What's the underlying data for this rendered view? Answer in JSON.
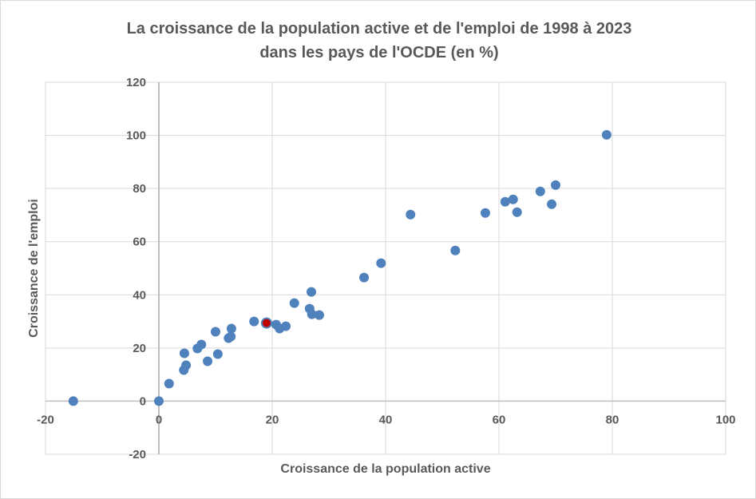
{
  "chart_data": {
    "type": "scatter",
    "title": [
      "La croissance de la population  active et de l'emploi de 1998 à 2023",
      "dans les pays de l'OCDE (en %)"
    ],
    "xlabel": "Croissance de la population  active",
    "ylabel": "Croissance de l'emploi",
    "xlim": [
      -20,
      100
    ],
    "ylim": [
      -20,
      120
    ],
    "xticks": [
      -20,
      0,
      20,
      40,
      60,
      80,
      100
    ],
    "yticks": [
      -20,
      0,
      20,
      40,
      60,
      80,
      100,
      120
    ],
    "grid": true,
    "colors": {
      "point": "#4f81bd",
      "highlight": "#c00000",
      "grid": "#d9d9d9",
      "text": "#595959"
    },
    "points": [
      {
        "x": -15.1,
        "y": 0
      },
      {
        "x": 0,
        "y": 0
      },
      {
        "x": 1.8,
        "y": 6.6
      },
      {
        "x": 4.4,
        "y": 11.7
      },
      {
        "x": 4.8,
        "y": 13.5
      },
      {
        "x": 4.5,
        "y": 18
      },
      {
        "x": 6.8,
        "y": 19.8
      },
      {
        "x": 7.5,
        "y": 21.3
      },
      {
        "x": 8.6,
        "y": 15
      },
      {
        "x": 10,
        "y": 26.1
      },
      {
        "x": 10.4,
        "y": 17.7
      },
      {
        "x": 12.3,
        "y": 23.7
      },
      {
        "x": 12.7,
        "y": 24.3
      },
      {
        "x": 12.8,
        "y": 27.3
      },
      {
        "x": 16.8,
        "y": 30
      },
      {
        "x": 19,
        "y": 29.4,
        "highlight": true
      },
      {
        "x": 20.7,
        "y": 28.8
      },
      {
        "x": 21.3,
        "y": 27.3
      },
      {
        "x": 22.4,
        "y": 28.2
      },
      {
        "x": 23.9,
        "y": 36.9
      },
      {
        "x": 26.6,
        "y": 34.8
      },
      {
        "x": 26.9,
        "y": 41.1
      },
      {
        "x": 27,
        "y": 32.7
      },
      {
        "x": 28.3,
        "y": 32.4
      },
      {
        "x": 36.2,
        "y": 46.5
      },
      {
        "x": 39.2,
        "y": 51.9
      },
      {
        "x": 44.4,
        "y": 70.2
      },
      {
        "x": 52.3,
        "y": 56.7
      },
      {
        "x": 57.6,
        "y": 70.8
      },
      {
        "x": 61.1,
        "y": 75
      },
      {
        "x": 62.5,
        "y": 75.9
      },
      {
        "x": 63.2,
        "y": 71.1
      },
      {
        "x": 67.3,
        "y": 78.9
      },
      {
        "x": 69.3,
        "y": 74.1
      },
      {
        "x": 70,
        "y": 81.3
      },
      {
        "x": 79,
        "y": 100.2
      }
    ]
  }
}
